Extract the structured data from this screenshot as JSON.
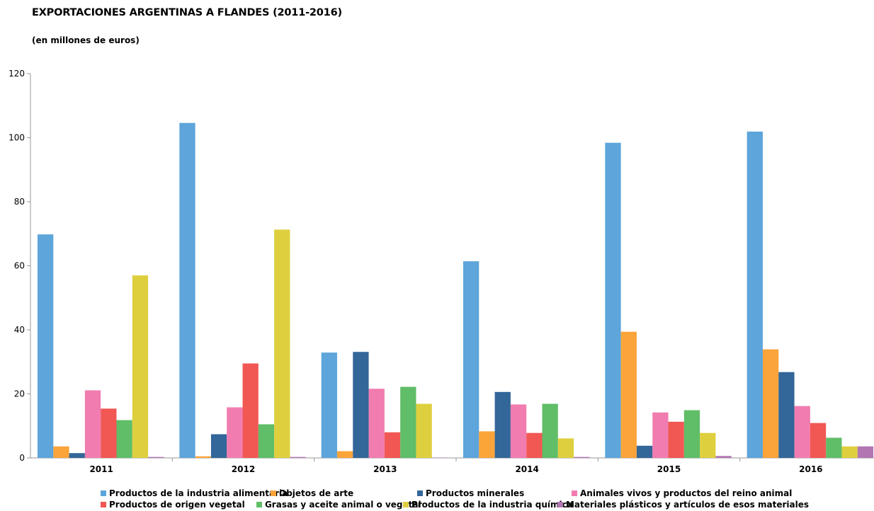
{
  "header": {
    "title": "EXPORTACIONES ARGENTINAS A FLANDES (2011-2016)",
    "subtitle": "(en millones de euros)"
  },
  "chart_data": {
    "type": "bar",
    "title": "EXPORTACIONES ARGENTINAS A FLANDES (2011-2016)",
    "subtitle": "(en millones de euros)",
    "xlabel": "",
    "ylabel": "",
    "categories": [
      "2011",
      "2012",
      "2013",
      "2014",
      "2015",
      "2016"
    ],
    "ylim": [
      0,
      120
    ],
    "yticks": [
      0,
      20,
      40,
      60,
      80,
      100,
      120
    ],
    "grid": false,
    "legend_position": "bottom",
    "series": [
      {
        "name": "Productos de la industria alimentaria",
        "color": "#5DA5DA",
        "values": [
          69.8,
          104.6,
          32.9,
          61.4,
          98.4,
          101.9
        ]
      },
      {
        "name": "Objetos de arte",
        "color": "#FAA43A",
        "values": [
          3.6,
          0.5,
          2.1,
          8.3,
          39.4,
          33.9
        ]
      },
      {
        "name": "Productos minerales",
        "color": "#336699",
        "values": [
          1.5,
          7.4,
          33.1,
          20.6,
          3.8,
          26.8
        ]
      },
      {
        "name": "Animales vivos y productos del reino animal",
        "color": "#F17CB0",
        "values": [
          21.1,
          15.8,
          21.6,
          16.7,
          14.2,
          16.2
        ]
      },
      {
        "name": "Productos de origen vegetal",
        "color": "#F15854",
        "values": [
          15.4,
          29.5,
          8.0,
          7.8,
          11.3,
          10.9
        ]
      },
      {
        "name": "Grasas y aceite animal o vegetal",
        "color": "#60BD68",
        "values": [
          11.8,
          10.5,
          22.2,
          16.9,
          14.9,
          6.3
        ]
      },
      {
        "name": "Productos de la industria química",
        "color": "#DECF3F",
        "values": [
          57.0,
          71.3,
          16.9,
          6.1,
          7.8,
          3.6
        ]
      },
      {
        "name": "Materiales plásticos y artículos de esos materiales",
        "color": "#B276B2",
        "values": [
          0.3,
          0.3,
          0.1,
          0.3,
          0.6,
          3.6
        ]
      }
    ]
  }
}
